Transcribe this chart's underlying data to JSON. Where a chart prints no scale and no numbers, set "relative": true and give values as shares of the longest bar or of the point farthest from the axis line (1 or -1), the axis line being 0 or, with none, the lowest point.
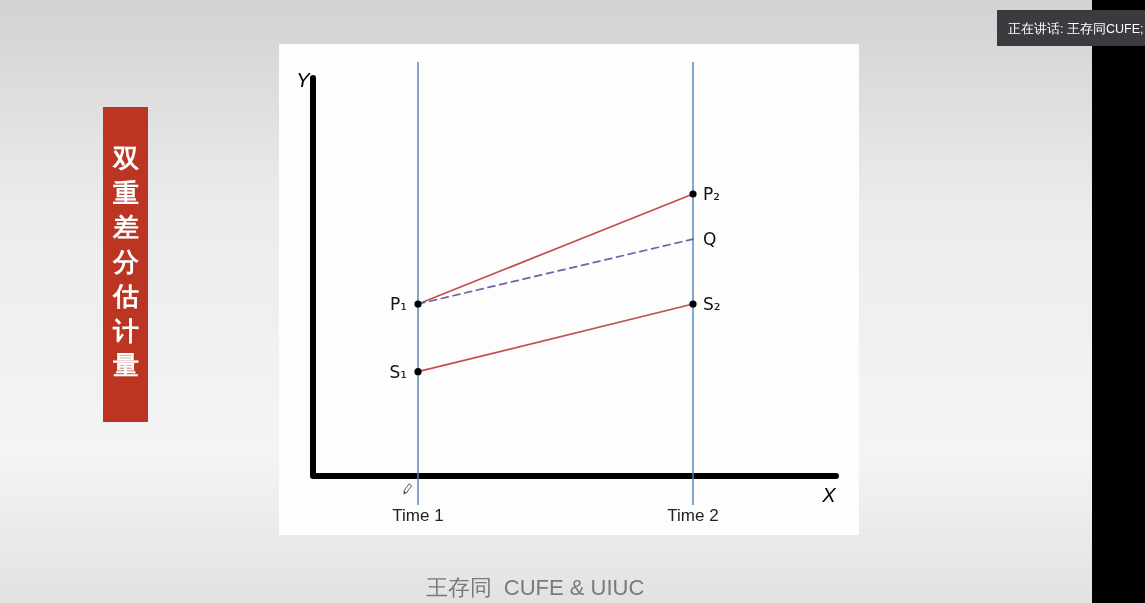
{
  "chart_data": {
    "type": "line",
    "title": "双重差分估计量",
    "xlabel": "X",
    "relative": true,
    "categories": [
      "Time 1",
      "Time 2"
    ],
    "series": [
      {
        "type": "line",
        "color": "#c0504d",
        "values": [
          0.61,
          1
        ]
      },
      {
        "type": "line",
        "color": "#6b66aa",
        "line_style": "dashed",
        "values": [
          0.61,
          0.84
        ]
      },
      {
        "type": "line",
        "color": "#c0504d",
        "values": [
          0.37,
          0.61
        ]
      },
      {
        "type": "scatter",
        "color": "#000000",
        "marker": "circle",
        "x": [
          "Time 1",
          "Time 2",
          "Time 1",
          "Time 2"
        ],
        "values": [
          0.61,
          1,
          0.37,
          0.61
        ]
      }
    ],
    "ref_lines": [
      {
        "axis": "x",
        "value": "Time 1",
        "color": "#4f81bd"
      },
      {
        "axis": "x",
        "value": "Time 2",
        "color": "#4f81bd"
      }
    ],
    "annotations": [
      {
        "text": "P₁",
        "x": "Time 1",
        "y": 0.61
      },
      {
        "text": "P₂",
        "x": "Time 2",
        "y": 1
      },
      {
        "text": "Q",
        "x": "Time 2",
        "y": 0.84
      },
      {
        "text": "S₁",
        "x": "Time 1",
        "y": 0.37
      },
      {
        "text": "S₂",
        "x": "Time 2",
        "y": 0.61
      },
      "王存同  CUFE & UIUC",
      "正在讲话: 王存同CUFE;",
      "Y"
    ]
  }
}
